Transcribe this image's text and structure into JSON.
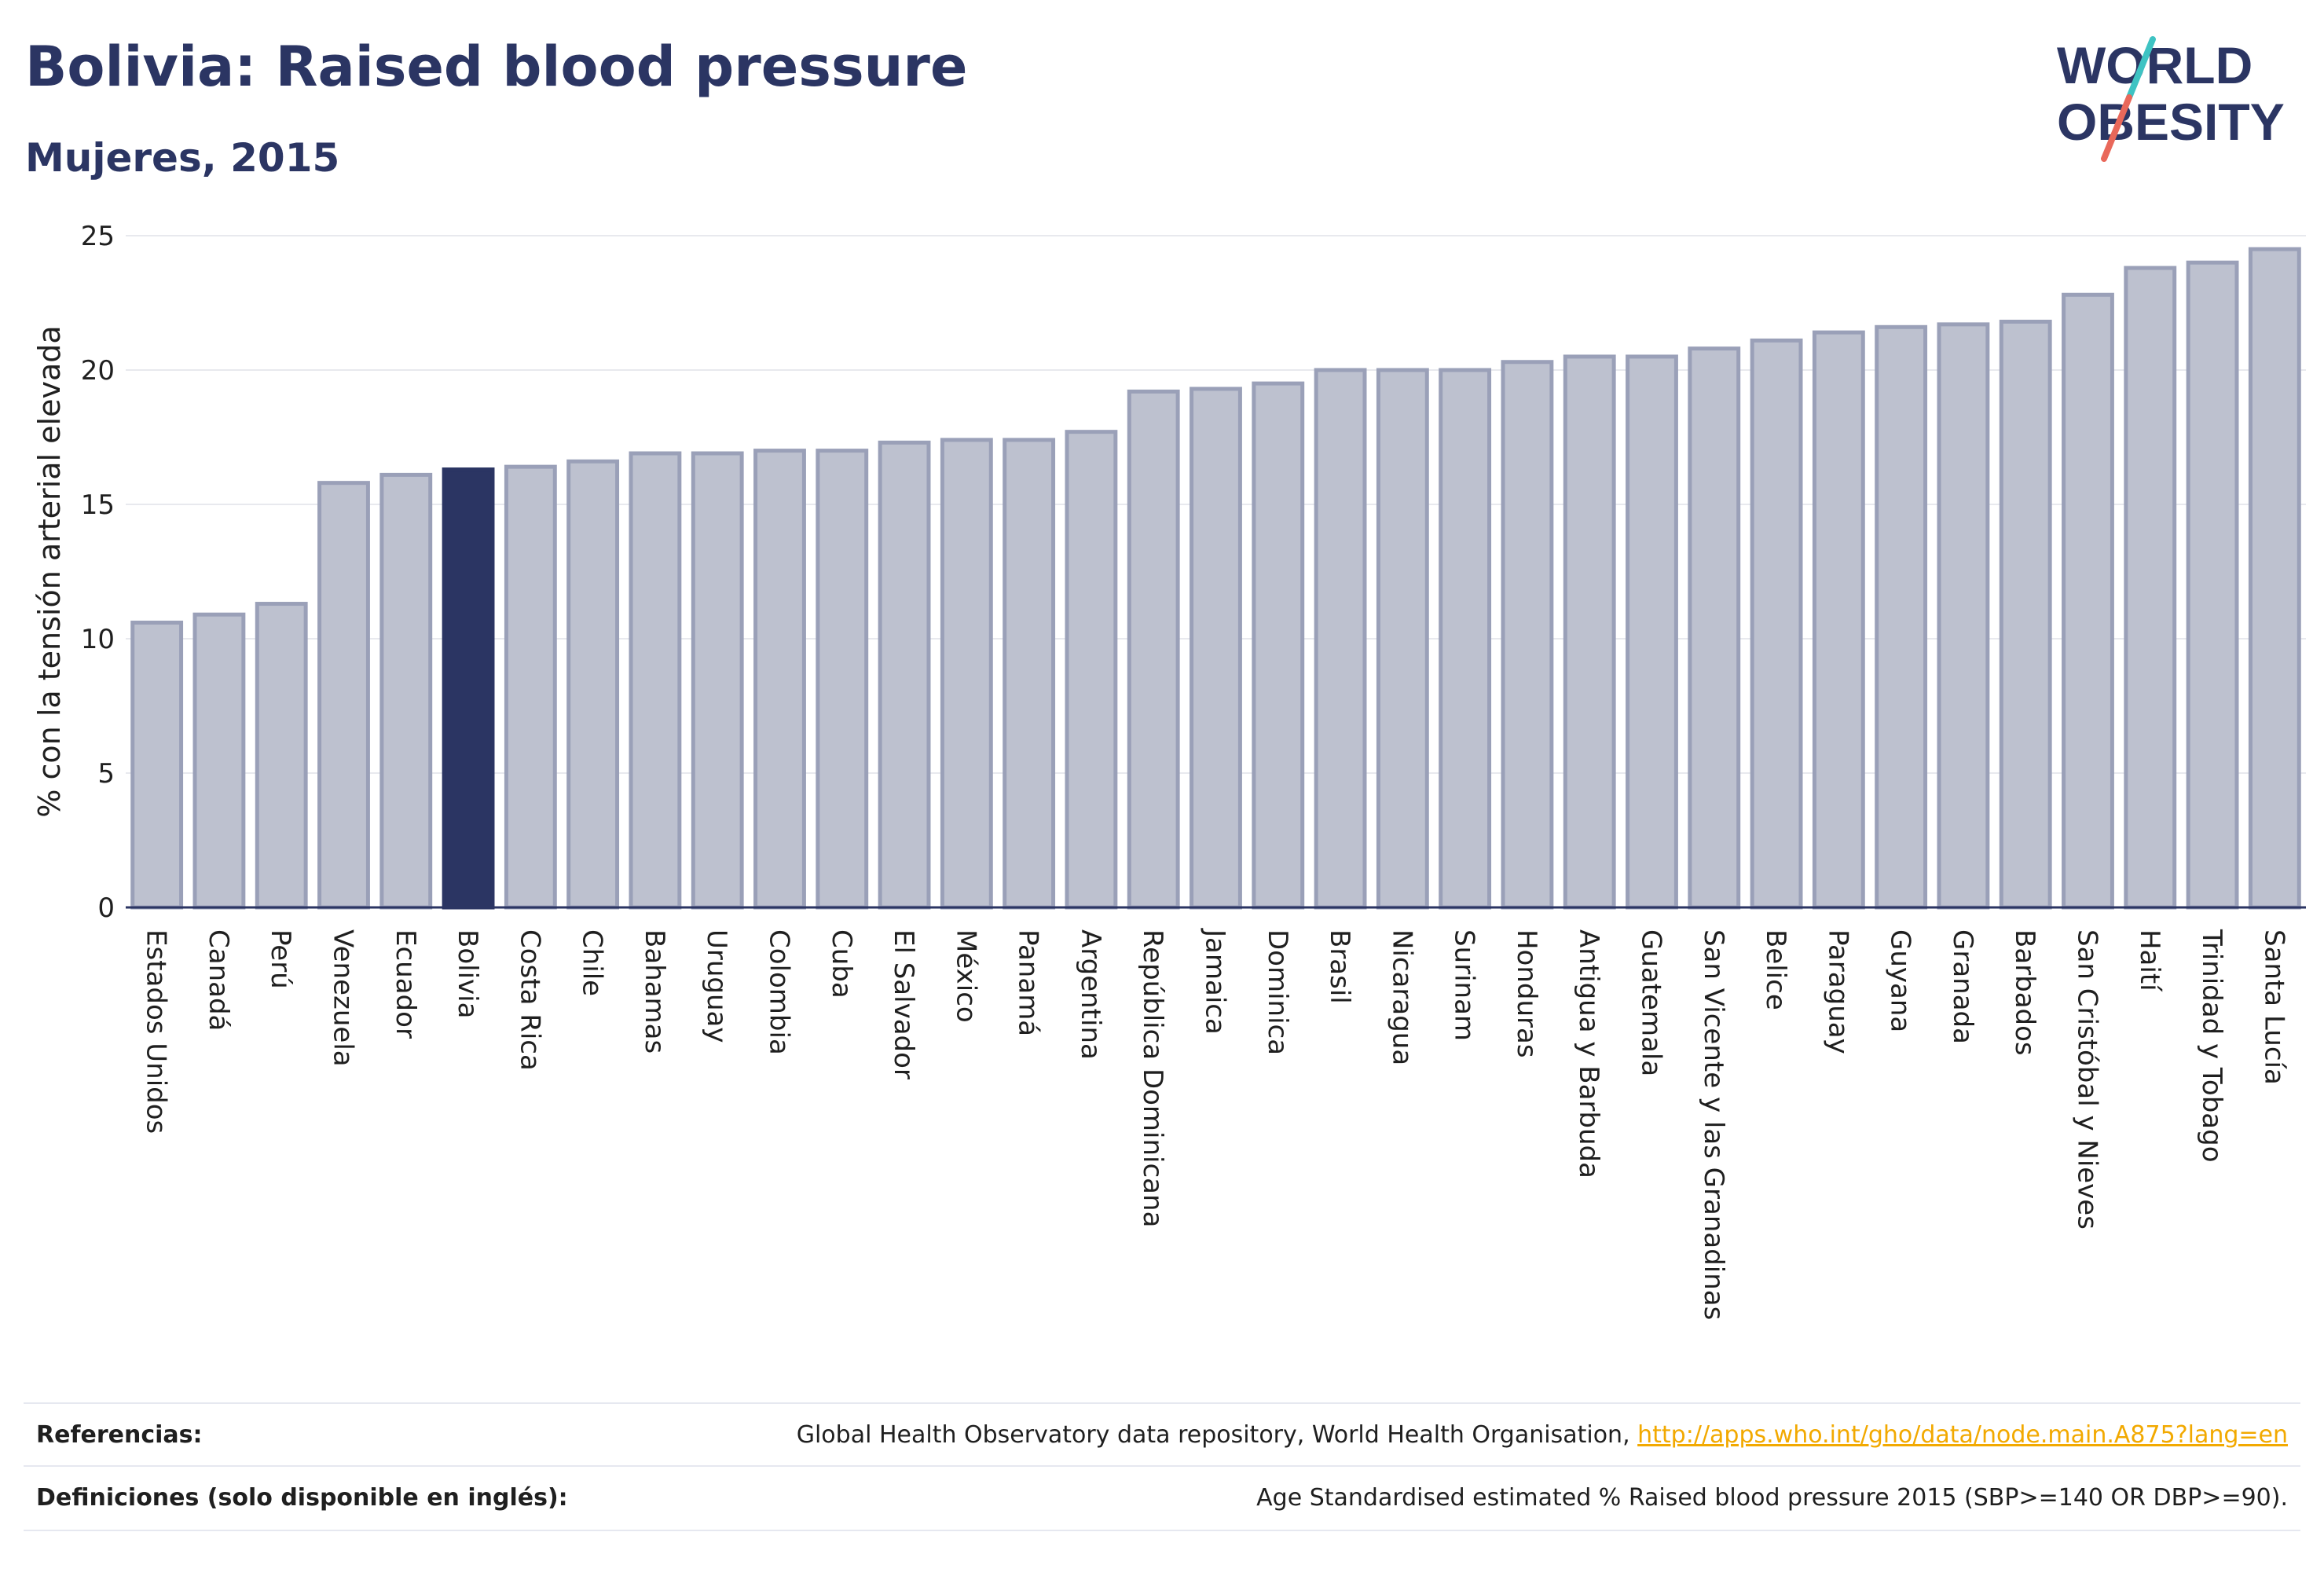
{
  "header": {
    "title": "Bolivia: Raised blood pressure",
    "subtitle": "Mujeres, 2015"
  },
  "logo": {
    "line1": "WORLD",
    "line2": "OBESITY",
    "accent_colors": [
      "#3ec3c3",
      "#e9685a"
    ],
    "text_color": "#2b3563"
  },
  "colors": {
    "bar_fill": "#bdc1cf",
    "bar_stroke": "#9aa0b8",
    "highlight_fill": "#2b3563",
    "grid": "#e8e9ee"
  },
  "chart_data": {
    "type": "bar",
    "title": "Bolivia: Raised blood pressure",
    "subtitle": "Mujeres, 2015",
    "ylabel": "% con la tensión arterial elevada",
    "xlabel": "",
    "ylim": [
      0,
      25
    ],
    "yticks": [
      0,
      5,
      10,
      15,
      20,
      25
    ],
    "grid": true,
    "highlight": "Bolivia",
    "categories": [
      "Estados Unidos",
      "Canadá",
      "Perú",
      "Venezuela",
      "Ecuador",
      "Bolivia",
      "Costa Rica",
      "Chile",
      "Bahamas",
      "Uruguay",
      "Colombia",
      "Cuba",
      "El Salvador",
      "México",
      "Panamá",
      "Argentina",
      "República Dominicana",
      "Jamaica",
      "Dominica",
      "Brasil",
      "Nicaragua",
      "Surinam",
      "Honduras",
      "Antigua y Barbuda",
      "Guatemala",
      "San Vicente y las Granadinas",
      "Belice",
      "Paraguay",
      "Guyana",
      "Granada",
      "Barbados",
      "San Cristóbal y Nieves",
      "Haití",
      "Trinidad y Tobago",
      "Santa Lucía"
    ],
    "values": [
      10.6,
      10.9,
      11.3,
      15.8,
      16.1,
      16.3,
      16.4,
      16.6,
      16.9,
      16.9,
      17.0,
      17.0,
      17.3,
      17.4,
      17.4,
      17.7,
      19.2,
      19.3,
      19.5,
      20.0,
      20.0,
      20.0,
      20.3,
      20.5,
      20.5,
      20.8,
      21.1,
      21.4,
      21.6,
      21.7,
      21.8,
      22.8,
      23.8,
      24.0,
      24.5
    ]
  },
  "footer": {
    "references_label": "Referencias:",
    "references_text": "Global Health Observatory data repository, World Health Organisation, ",
    "references_link": "http://apps.who.int/gho/data/node.main.A875?lang=en",
    "definitions_label": "Definiciones (solo disponible en inglés):",
    "definitions_text": "Age Standardised estimated % Raised blood pressure 2015 (SBP>=140 OR DBP>=90)."
  }
}
